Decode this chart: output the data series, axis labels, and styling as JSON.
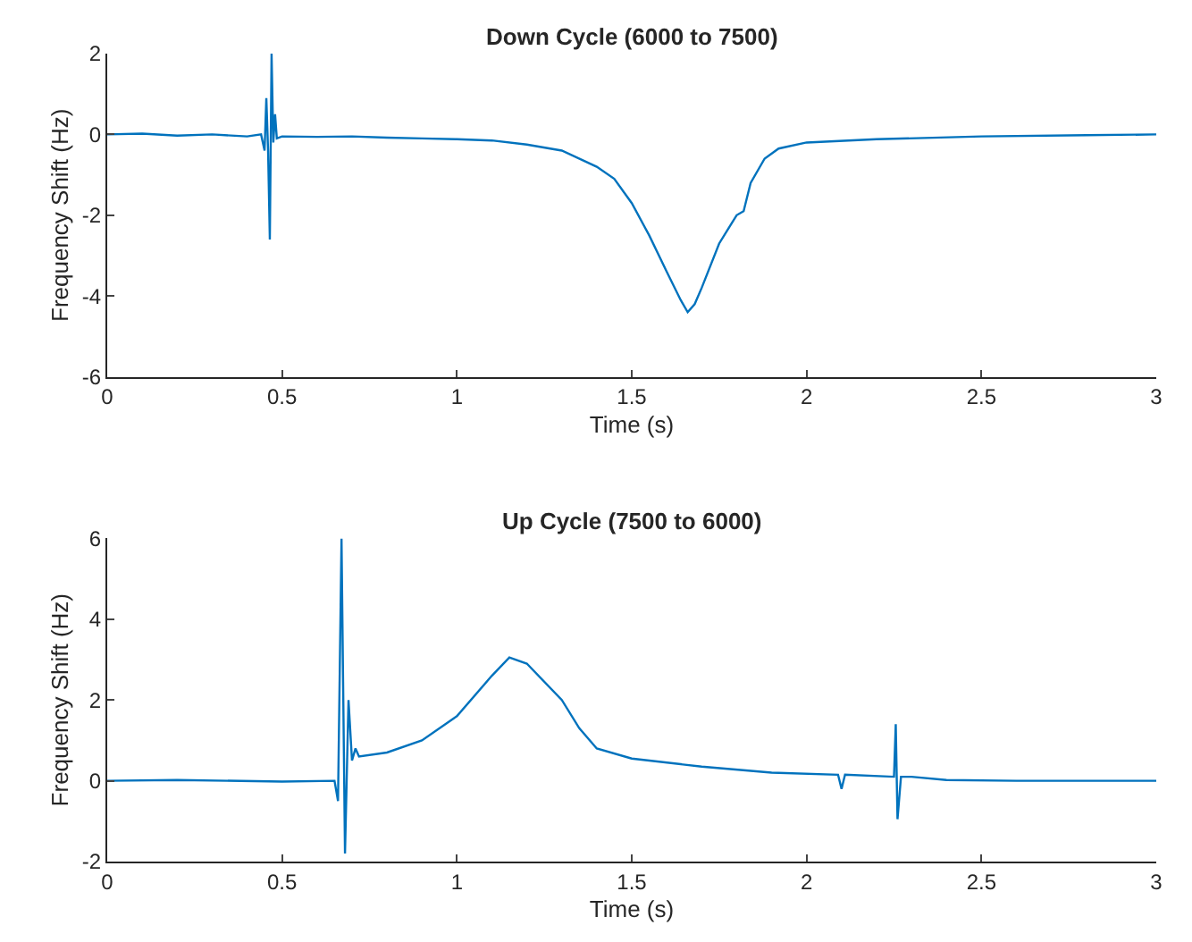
{
  "chart_data": [
    {
      "type": "line",
      "title": "Down Cycle (6000 to 7500)",
      "xlabel": "Time (s)",
      "ylabel": "Frequency Shift (Hz)",
      "xlim": [
        0,
        3
      ],
      "xticks": [
        0,
        0.5,
        1,
        1.5,
        2,
        2.5,
        3
      ],
      "ylim": [
        -6,
        2
      ],
      "yticks": [
        -6,
        -4,
        -2,
        0,
        2
      ],
      "series": [
        {
          "color": "#0072bd",
          "x": [
            0,
            0.1,
            0.2,
            0.3,
            0.4,
            0.44,
            0.45,
            0.455,
            0.46,
            0.465,
            0.47,
            0.475,
            0.48,
            0.485,
            0.5,
            0.6,
            0.7,
            0.8,
            0.9,
            1.0,
            1.1,
            1.2,
            1.3,
            1.4,
            1.45,
            1.5,
            1.55,
            1.6,
            1.64,
            1.66,
            1.68,
            1.7,
            1.75,
            1.8,
            1.82,
            1.84,
            1.88,
            1.92,
            2.0,
            2.2,
            2.5,
            2.8,
            3.0
          ],
          "values": [
            0,
            0.02,
            -0.03,
            0,
            -0.05,
            0,
            -0.4,
            0.9,
            -0.4,
            -2.6,
            2.0,
            -0.2,
            0.5,
            -0.1,
            -0.05,
            -0.06,
            -0.05,
            -0.08,
            -0.1,
            -0.12,
            -0.15,
            -0.25,
            -0.4,
            -0.8,
            -1.1,
            -1.7,
            -2.5,
            -3.4,
            -4.1,
            -4.4,
            -4.2,
            -3.8,
            -2.7,
            -2.0,
            -1.9,
            -1.2,
            -0.6,
            -0.35,
            -0.2,
            -0.12,
            -0.05,
            -0.02,
            0
          ]
        }
      ]
    },
    {
      "type": "line",
      "title": "Up Cycle (7500 to 6000)",
      "xlabel": "Time (s)",
      "ylabel": "Frequency Shift (Hz)",
      "xlim": [
        0,
        3
      ],
      "xticks": [
        0,
        0.5,
        1,
        1.5,
        2,
        2.5,
        3
      ],
      "ylim": [
        -2,
        6
      ],
      "yticks": [
        -2,
        0,
        2,
        4,
        6
      ],
      "series": [
        {
          "color": "#0072bd",
          "x": [
            0,
            0.2,
            0.5,
            0.65,
            0.66,
            0.67,
            0.68,
            0.69,
            0.7,
            0.71,
            0.72,
            0.8,
            0.9,
            1.0,
            1.1,
            1.15,
            1.2,
            1.3,
            1.35,
            1.4,
            1.5,
            1.7,
            1.9,
            2.09,
            2.1,
            2.11,
            2.25,
            2.255,
            2.26,
            2.27,
            2.3,
            2.4,
            2.6,
            3.0
          ],
          "values": [
            0,
            0.02,
            -0.02,
            0,
            -0.5,
            6.0,
            -1.8,
            2.0,
            0.5,
            0.8,
            0.6,
            0.7,
            1.0,
            1.6,
            2.6,
            3.05,
            2.9,
            2.0,
            1.3,
            0.8,
            0.55,
            0.35,
            0.2,
            0.15,
            -0.2,
            0.15,
            0.1,
            1.4,
            -0.95,
            0.1,
            0.1,
            0.02,
            0,
            0
          ]
        }
      ]
    }
  ]
}
